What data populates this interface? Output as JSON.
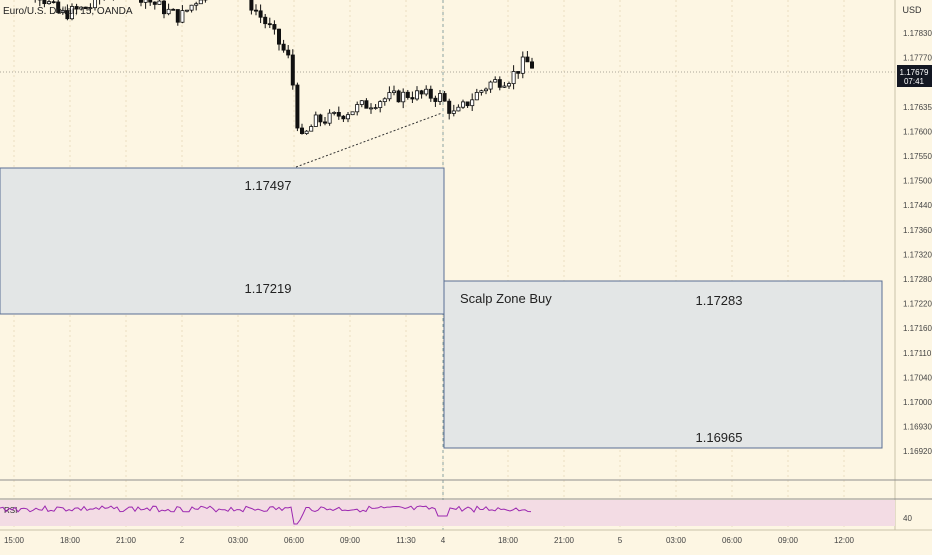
{
  "symbol_title": "Euro/U.S. Dollar, 15, OANDA",
  "currency": "USD",
  "last_price": {
    "value": "1.17679",
    "countdown": "07:41"
  },
  "price_axis": {
    "ticks": [
      "1.17830",
      "1.17770",
      "1.17700",
      "1.17635",
      "1.17600",
      "1.17550",
      "1.17500",
      "1.17440",
      "1.17360",
      "1.17320",
      "1.17280",
      "1.17220",
      "1.17160",
      "1.17110",
      "1.17040",
      "1.17000",
      "1.16930",
      "1.16920"
    ]
  },
  "time_axis": {
    "ticks": [
      "15:00",
      "18:00",
      "21:00",
      "2",
      "03:00",
      "06:00",
      "09:00",
      "11:30",
      "4",
      "18:00",
      "21:00",
      "5",
      "03:00",
      "06:00",
      "09:00",
      "12:00"
    ]
  },
  "zones": [
    {
      "top_label": "1.17497",
      "bottom_label": "1.17219",
      "title": ""
    },
    {
      "top_label": "1.17283",
      "bottom_label": "1.16965",
      "title": "Scalp Zone Buy"
    }
  ],
  "rsi_panel": {
    "label": "RSI",
    "level_label": "40"
  },
  "colors": {
    "background": "#fdf6e3",
    "zone_fill": "#e3e6e6",
    "zone_border": "#5a6f94",
    "candle": "#111111",
    "rsi_line": "#9c27b0",
    "rsi_band": "#f3dce4",
    "price_label_bg": "#131722"
  },
  "chart_data": {
    "type": "candlestick",
    "title": "Euro/U.S. Dollar, 15, OANDA",
    "x": [
      "15:00",
      "18:00",
      "21:00",
      "2",
      "03:00",
      "06:00",
      "09:00",
      "11:30",
      "4",
      "18:00"
    ],
    "series": [
      {
        "values": [
          1.1784,
          1.1783,
          1.1781,
          1.1778,
          1.1782,
          1.1752,
          1.1761,
          1.1762,
          1.1762,
          1.1768
        ]
      }
    ],
    "ylim": [
      1.169,
      1.1785
    ],
    "annotations": [
      "1.17497",
      "1.17219",
      "1.17283",
      "1.16965",
      "Scalp Zone Buy"
    ]
  }
}
